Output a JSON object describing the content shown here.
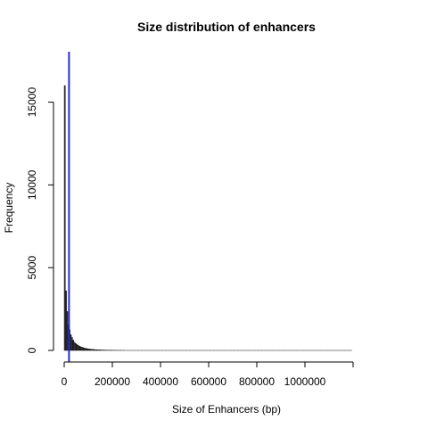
{
  "chart_data": {
    "type": "bar",
    "title": "Size distribution of enhancers",
    "xlabel": "Size of Enhancers (bp)",
    "ylabel": "Frequency",
    "xlim": [
      0,
      1200000
    ],
    "ylim": [
      0,
      16000
    ],
    "x_ticks": [
      0,
      200000,
      400000,
      600000,
      800000,
      1000000,
      1200000
    ],
    "x_tick_labels": [
      "0",
      "200000",
      "400000",
      "600000",
      "800000",
      "1000000",
      ""
    ],
    "y_ticks": [
      0,
      5000,
      10000,
      15000
    ],
    "y_tick_labels": [
      "0",
      "5000",
      "10000",
      "15000"
    ],
    "bin_width": 5000,
    "bins_start": 0,
    "values": [
      16000,
      3600,
      2350,
      1550,
      1250,
      950,
      780,
      620,
      500,
      420,
      360,
      310,
      260,
      225,
      195,
      170,
      150,
      130,
      115,
      100,
      88,
      78,
      70,
      62,
      55,
      49,
      44,
      39,
      35,
      31,
      28,
      25,
      22,
      20,
      18,
      16,
      14,
      13,
      12,
      11,
      10,
      9,
      8,
      7,
      7,
      6,
      6,
      5,
      5,
      5
    ],
    "tail_bins_until": 1195000,
    "reference_line": {
      "x": 20000,
      "color": "#2b2bd6"
    },
    "colors": {
      "bar_fill": "#3a3a3a",
      "bar_stroke": "#000000"
    },
    "grid": false,
    "legend": "none"
  }
}
